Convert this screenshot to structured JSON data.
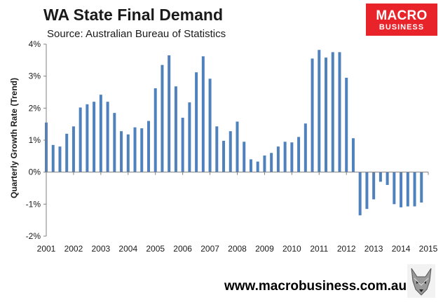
{
  "header": {
    "title": "WA State Final Demand",
    "subtitle": "Source: Australian Bureau of Statistics"
  },
  "logo": {
    "line1": "MACRO",
    "line2": "BUSINESS",
    "color": "#e8232a"
  },
  "footer": {
    "url": "www.macrobusiness.com.au"
  },
  "colors": {
    "bar": "#4f81bd",
    "axis": "#808080"
  },
  "chart_data": {
    "type": "bar",
    "title": "WA State Final Demand",
    "subtitle": "Source: Australian Bureau of Statistics",
    "xlabel": "",
    "ylabel": "Quarterly Growth Rate (Trend)",
    "ylim": [
      -2,
      4
    ],
    "yticks": [
      -2,
      -1,
      0,
      1,
      2,
      3,
      4
    ],
    "ytick_labels": [
      "-2%",
      "-1%",
      "0%",
      "1%",
      "2%",
      "3%",
      "4%"
    ],
    "year_labels": [
      "2001",
      "2002",
      "2003",
      "2004",
      "2005",
      "2006",
      "2007",
      "2008",
      "2009",
      "2010",
      "2011",
      "2012",
      "2013",
      "2014",
      "2015"
    ],
    "grid": false,
    "legend": "none",
    "series": [
      {
        "name": "WA State Final Demand (quarterly growth, %)",
        "start_year": 2001,
        "start_quarter": 1,
        "values": [
          1.55,
          0.85,
          0.8,
          1.2,
          1.43,
          2.02,
          2.12,
          2.2,
          2.42,
          2.2,
          1.85,
          1.28,
          1.18,
          1.4,
          1.37,
          1.6,
          2.62,
          3.35,
          3.65,
          2.68,
          1.7,
          2.18,
          3.12,
          3.62,
          2.92,
          1.43,
          0.98,
          1.28,
          1.58,
          0.95,
          0.4,
          0.33,
          0.52,
          0.6,
          0.8,
          0.95,
          0.93,
          1.1,
          1.52,
          3.55,
          3.82,
          3.58,
          3.75,
          3.75,
          2.95,
          1.06,
          -1.35,
          -1.15,
          -0.85,
          -0.3,
          -0.4,
          -1.0,
          -1.1,
          -1.07,
          -1.07,
          -0.95
        ]
      }
    ]
  }
}
